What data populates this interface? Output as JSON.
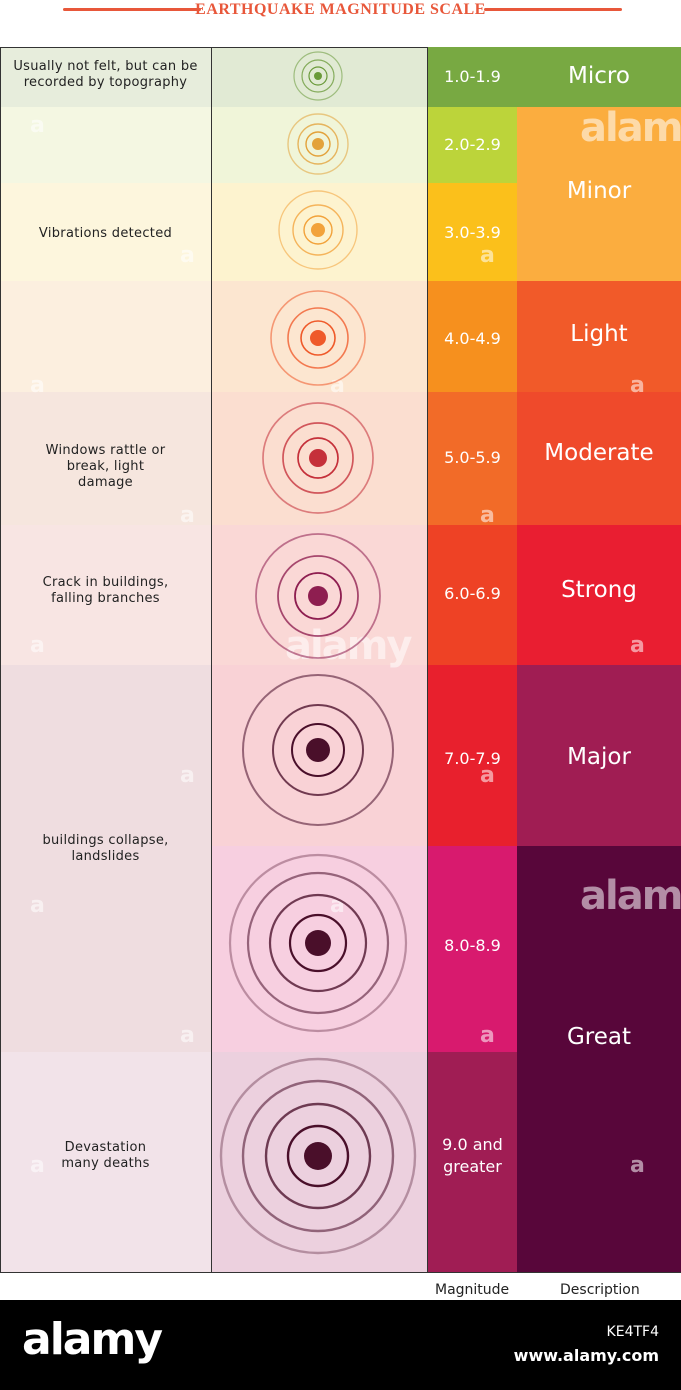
{
  "title": "EARTHQUAKE MAGNITUDE SCALE",
  "columns": {
    "magnitude": "Magnitude",
    "description": "Description"
  },
  "levels": [
    {
      "magnitude": "1.0-1.9",
      "mag_color": "#78a942"
    },
    {
      "magnitude": "2.0-2.9",
      "mag_color": "#bcd43a"
    },
    {
      "magnitude": "3.0-3.9",
      "mag_color": "#fbc01b"
    },
    {
      "magnitude": "4.0-4.9",
      "mag_color": "#f6901e"
    },
    {
      "magnitude": "5.0-5.9",
      "mag_color": "#f26b28"
    },
    {
      "magnitude": "6.0-6.9",
      "mag_color": "#ee4225"
    },
    {
      "magnitude": "7.0-7.9",
      "mag_color": "#e8202d"
    },
    {
      "magnitude": "8.0-8.9",
      "mag_color": "#d81a6e"
    },
    {
      "magnitude": "9.0 and greater",
      "mag_color": "#a01d54"
    }
  ],
  "descriptions": [
    {
      "label": "Micro",
      "color": "#78a942"
    },
    {
      "label": "Minor",
      "color": "#fbad3f"
    },
    {
      "label": "Light",
      "color": "#f15a29"
    },
    {
      "label": "Moderate",
      "color": "#ef4a2b"
    },
    {
      "label": "Strong",
      "color": "#e91e31"
    },
    {
      "label": "Major",
      "color": "#a01d53"
    },
    {
      "label": "Great",
      "color": "#58063a"
    }
  ],
  "effects": [
    "Usually not felt, but can be recorded by topography",
    "Vibrations detected",
    "Windows rattle or break, light damage",
    "Crack in buildings, falling branches",
    "buildings collapse, landslides",
    "Devastation many deaths"
  ],
  "watermark": {
    "brand": "alamy",
    "id": "KE4TF4",
    "site": "www.alamy.com"
  }
}
